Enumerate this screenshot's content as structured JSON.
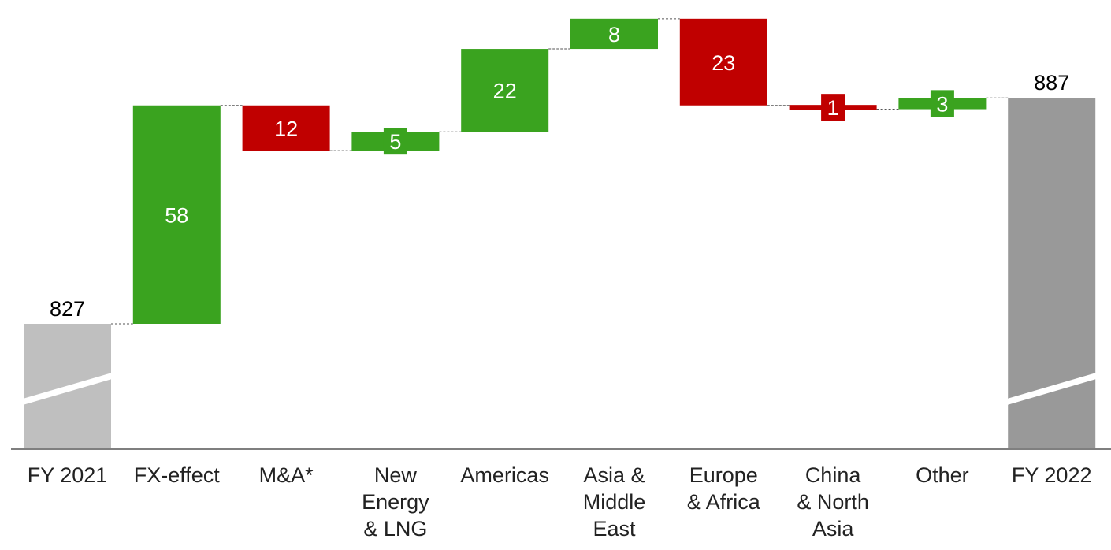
{
  "chart_data": {
    "type": "waterfall",
    "start": {
      "label": "FY 2021",
      "value": 827
    },
    "end": {
      "label": "FY 2022",
      "value": 887
    },
    "steps": [
      {
        "label": "FX-effect",
        "value": 58,
        "direction": "increase"
      },
      {
        "label": "M&A*",
        "value": -12,
        "direction": "decrease"
      },
      {
        "label": "New Energy & LNG",
        "value": 5,
        "direction": "increase"
      },
      {
        "label": "Americas",
        "value": 22,
        "direction": "increase"
      },
      {
        "label": "Asia & Middle East",
        "value": 8,
        "direction": "increase"
      },
      {
        "label": "Europe & Africa",
        "value": -23,
        "direction": "decrease"
      },
      {
        "label": "China & North Asia",
        "value": -1,
        "direction": "decrease"
      },
      {
        "label": "Other",
        "value": 3,
        "direction": "increase"
      }
    ],
    "categories": [
      "FY 2021",
      "FX-effect",
      "M&A*",
      "New Energy & LNG",
      "Americas",
      "Asia & Middle East",
      "Europe & Africa",
      "China & North Asia",
      "Other",
      "FY 2022"
    ],
    "category_lines": [
      [
        "FY 2021"
      ],
      [
        "FX-effect"
      ],
      [
        "M&A*"
      ],
      [
        "New",
        "Energy",
        "& LNG"
      ],
      [
        "Americas"
      ],
      [
        "Asia &",
        "Middle",
        "East"
      ],
      [
        "Europe",
        "& Africa"
      ],
      [
        "China",
        "& North",
        "Asia"
      ],
      [
        "Other"
      ],
      [
        "FY 2022"
      ]
    ],
    "data_labels": [
      "827",
      "58",
      "12",
      "5",
      "22",
      "8",
      "23",
      "1",
      "3",
      "887"
    ],
    "axis_break": true,
    "colors": {
      "increase": "#3aa31f",
      "decrease": "#c00000",
      "start_total": "#bfbfbf",
      "end_total": "#999999",
      "connector": "#555555",
      "axis": "#7f7f7f",
      "label_inside": "#ffffff",
      "label_outside": "#000000"
    }
  }
}
